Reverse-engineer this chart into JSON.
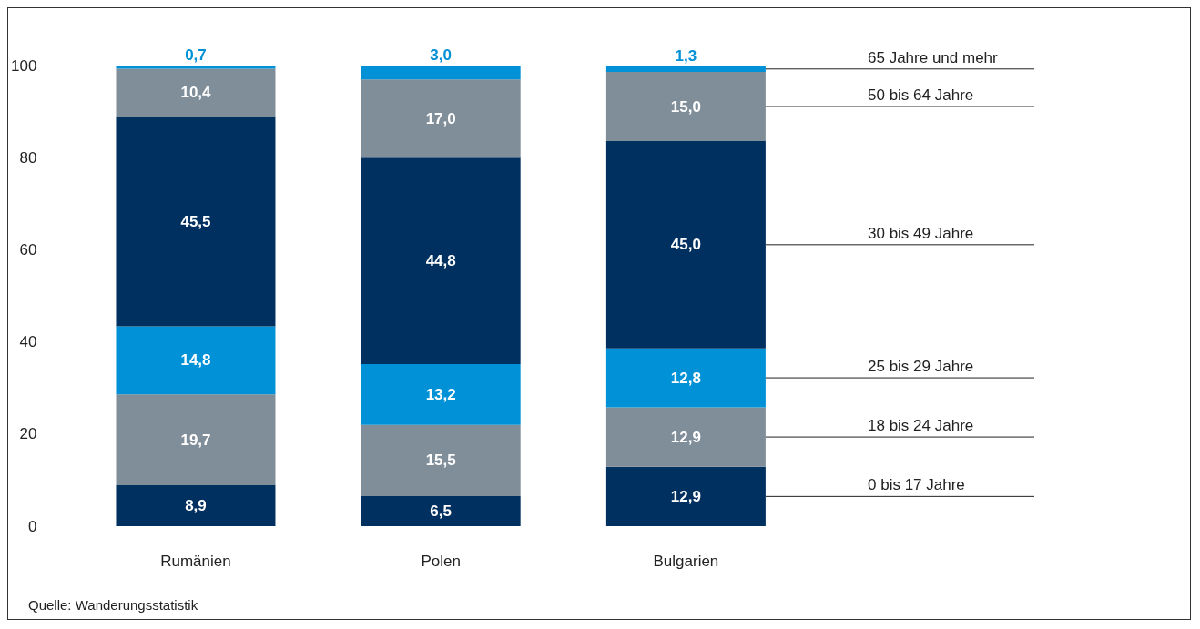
{
  "chart_data": {
    "type": "bar",
    "stacked": true,
    "categories": [
      "Rumänien",
      "Polen",
      "Bulgarien"
    ],
    "series": [
      {
        "name": "0 bis 17 Jahre",
        "color": "#003060",
        "values": [
          8.9,
          6.5,
          12.9
        ],
        "value_labels": [
          "8,9",
          "6,5",
          "12,9"
        ]
      },
      {
        "name": "18 bis 24 Jahre",
        "color": "#808e99",
        "values": [
          19.7,
          15.5,
          12.9
        ],
        "value_labels": [
          "19,7",
          "15,5",
          "12,9"
        ]
      },
      {
        "name": "25 bis 29 Jahre",
        "color": "#0091d6",
        "values": [
          14.8,
          13.2,
          12.8
        ],
        "value_labels": [
          "14,8",
          "13,2",
          "12,8"
        ]
      },
      {
        "name": "30 bis 49 Jahre",
        "color": "#003060",
        "values": [
          45.5,
          44.8,
          45.0
        ],
        "value_labels": [
          "45,5",
          "44,8",
          "45,0"
        ]
      },
      {
        "name": "50 bis 64 Jahre",
        "color": "#808e99",
        "values": [
          10.4,
          17.0,
          15.0
        ],
        "value_labels": [
          "10,4",
          "17,0",
          "15,0"
        ]
      },
      {
        "name": "65 Jahre und mehr",
        "color": "#0091d6",
        "values": [
          0.7,
          3.0,
          1.3
        ],
        "value_labels": [
          "0,7",
          "3,0",
          "1,3"
        ]
      }
    ],
    "ylim": [
      0,
      100
    ],
    "yticks": [
      0,
      20,
      40,
      60,
      80,
      100
    ],
    "grid": false,
    "annotations": [
      "Quelle: Wanderungsstatistik"
    ]
  }
}
